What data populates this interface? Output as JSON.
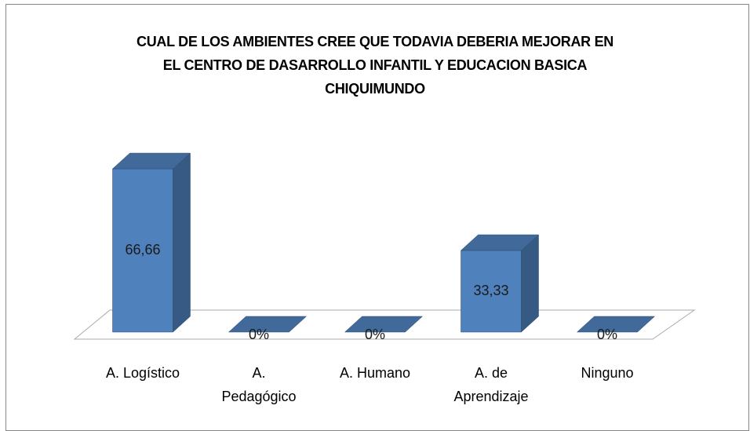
{
  "chart_data": {
    "type": "bar3d",
    "title": "CUAL DE LOS AMBIENTES CREE QUE TODAVIA DEBERIA MEJORAR EN EL CENTRO DE DASARROLLO INFANTIL Y EDUCACION BASICA CHIQUIMUNDO",
    "categories": [
      "A. Logístico",
      "A. Pedagógico",
      "A. Humano",
      "A. de Aprendizaje",
      "Ninguno"
    ],
    "values": [
      66.66,
      0,
      0,
      33.33,
      0
    ],
    "value_labels": [
      "66,66",
      "0%",
      "0%",
      "33,33",
      "0%"
    ],
    "color": "#4f81bd"
  }
}
